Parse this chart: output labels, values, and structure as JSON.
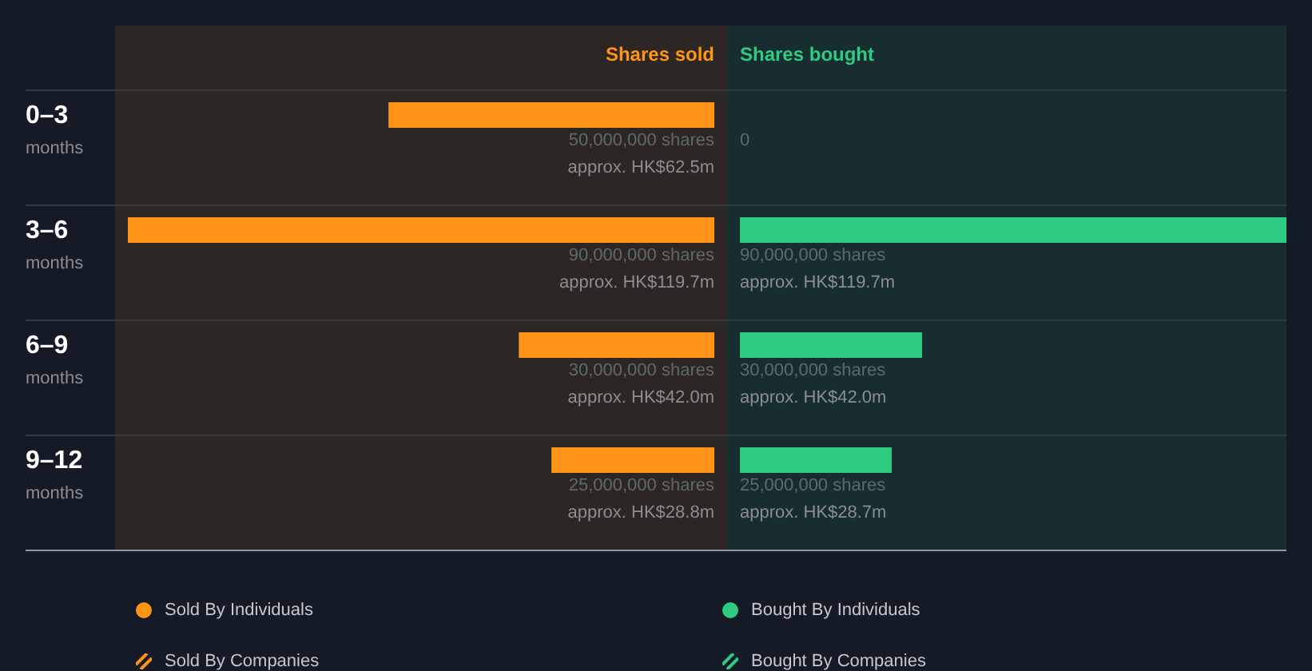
{
  "chart_data": [
    {
      "type": "bar",
      "orientation": "horizontal",
      "stacked": true,
      "title": "Shares sold",
      "categories": [
        "0–3 months",
        "3–6 months",
        "6–9 months",
        "9–12 months"
      ],
      "tick_labels": "y",
      "legend": "bottom",
      "series": [
        {
          "name": "Sold By Individuals",
          "color": "#ff9416",
          "marker": "circle",
          "values": [
            50000000,
            90000000,
            30000000,
            25000000
          ],
          "value_labels": [
            "50,000,000 shares",
            "90,000,000 shares",
            "30,000,000 shares",
            "25,000,000 shares"
          ]
        },
        {
          "name": "Sold By Companies",
          "color": "#ff9416",
          "marker": "square",
          "values": [
            null,
            null,
            null,
            null
          ]
        }
      ],
      "annotations": [
        "approx. HK$62.5m",
        "approx. HK$119.7m",
        "approx. HK$42.0m",
        "approx. HK$28.8m"
      ]
    },
    {
      "type": "bar",
      "orientation": "horizontal",
      "stacked": true,
      "title": "Shares bought",
      "tick_labels": false,
      "legend": "bottom",
      "series": [
        {
          "name": "Bought By Individuals",
          "color": "#2ecb82",
          "marker": "circle",
          "values": [
            0,
            90000000,
            30000000,
            25000000
          ],
          "value_labels": [
            "0",
            "90,000,000 shares",
            "30,000,000 shares",
            "25,000,000 shares"
          ]
        },
        {
          "name": "Bought By Companies",
          "color": "#2ecb82",
          "marker": "square",
          "values": [
            null,
            null,
            null,
            null
          ]
        }
      ],
      "annotations": [
        null,
        "approx. HK$119.7m",
        "approx. HK$42.0m",
        "approx. HK$28.7m"
      ]
    }
  ]
}
